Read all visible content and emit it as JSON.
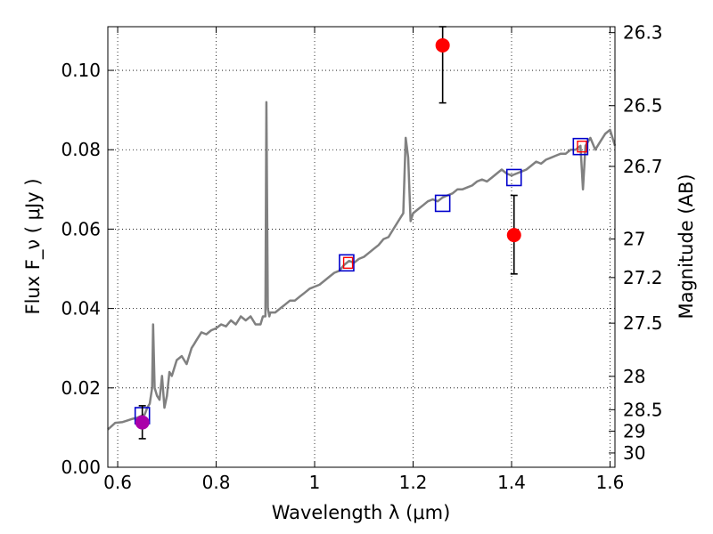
{
  "chart_data": {
    "type": "scatter",
    "title": "",
    "xlabel": "Wavelength  λ (μm)",
    "ylabel": "Flux  F_ν  ( μJy )",
    "ylabel_right": "Magnitude (AB)",
    "xlim": [
      0.58,
      1.61
    ],
    "ylim": [
      0.0,
      0.111
    ],
    "grid": true,
    "x_ticks": [
      {
        "value": 0.6,
        "label": "0.6"
      },
      {
        "value": 0.8,
        "label": "0.8"
      },
      {
        "value": 1.0,
        "label": "1"
      },
      {
        "value": 1.2,
        "label": "1.2"
      },
      {
        "value": 1.4,
        "label": "1.4"
      },
      {
        "value": 1.6,
        "label": "1.6"
      }
    ],
    "y_ticks": [
      {
        "value": 0.0,
        "label": "0.00"
      },
      {
        "value": 0.02,
        "label": "0.02"
      },
      {
        "value": 0.04,
        "label": "0.04"
      },
      {
        "value": 0.06,
        "label": "0.06"
      },
      {
        "value": 0.08,
        "label": "0.08"
      },
      {
        "value": 0.1,
        "label": "0.10"
      }
    ],
    "right_ticks": [
      {
        "label": "26.3",
        "flux": 0.1095
      },
      {
        "label": "26.5",
        "flux": 0.0911
      },
      {
        "label": "26.7",
        "flux": 0.0758
      },
      {
        "label": "27",
        "flux": 0.0575
      },
      {
        "label": "27.2",
        "flux": 0.0478
      },
      {
        "label": "27.5",
        "flux": 0.0363
      },
      {
        "label": "28",
        "flux": 0.0229
      },
      {
        "label": "28.5",
        "flux": 0.0145
      },
      {
        "label": "29",
        "flux": 0.0091
      },
      {
        "label": "30",
        "flux": 0.0036
      }
    ],
    "colors": {
      "spectrum": "#808080",
      "model_box": "#0000cc",
      "observed_box": "#ff0000",
      "detection": "#ff0000",
      "hst_point": "#aa00aa",
      "error_bar": "#000000",
      "grid": "#000000"
    },
    "series": [
      {
        "kind": "line",
        "x": [
          0.58,
          0.595,
          0.61,
          0.62,
          0.63,
          0.64,
          0.655,
          0.66,
          0.665,
          0.67,
          0.672,
          0.675,
          0.68,
          0.685,
          0.69,
          0.695,
          0.7,
          0.705,
          0.71,
          0.72,
          0.73,
          0.74,
          0.75,
          0.755,
          0.76,
          0.77,
          0.78,
          0.79,
          0.8,
          0.81,
          0.82,
          0.83,
          0.84,
          0.85,
          0.86,
          0.87,
          0.88,
          0.89,
          0.895,
          0.9,
          0.902,
          0.905,
          0.908,
          0.91,
          0.92,
          0.93,
          0.94,
          0.95,
          0.96,
          0.97,
          0.98,
          0.99,
          1.0,
          1.01,
          1.02,
          1.03,
          1.04,
          1.05,
          1.06,
          1.07,
          1.08,
          1.09,
          1.1,
          1.11,
          1.12,
          1.13,
          1.14,
          1.15,
          1.16,
          1.17,
          1.18,
          1.185,
          1.19,
          1.195,
          1.2,
          1.21,
          1.22,
          1.23,
          1.24,
          1.25,
          1.26,
          1.27,
          1.28,
          1.29,
          1.3,
          1.31,
          1.32,
          1.33,
          1.34,
          1.35,
          1.36,
          1.37,
          1.38,
          1.39,
          1.4,
          1.41,
          1.42,
          1.43,
          1.44,
          1.45,
          1.46,
          1.47,
          1.48,
          1.49,
          1.5,
          1.51,
          1.52,
          1.53,
          1.54,
          1.545,
          1.55,
          1.56,
          1.57,
          1.58,
          1.59,
          1.6,
          1.61
        ],
        "y": [
          0.0095,
          0.0112,
          0.0114,
          0.0118,
          0.0122,
          0.0125,
          0.0133,
          0.015,
          0.016,
          0.02,
          0.036,
          0.02,
          0.018,
          0.017,
          0.023,
          0.015,
          0.018,
          0.024,
          0.023,
          0.027,
          0.028,
          0.026,
          0.03,
          0.031,
          0.032,
          0.034,
          0.0335,
          0.0345,
          0.035,
          0.036,
          0.0355,
          0.037,
          0.036,
          0.038,
          0.037,
          0.038,
          0.036,
          0.036,
          0.038,
          0.038,
          0.092,
          0.04,
          0.038,
          0.039,
          0.039,
          0.04,
          0.041,
          0.042,
          0.042,
          0.043,
          0.044,
          0.045,
          0.0455,
          0.046,
          0.047,
          0.048,
          0.049,
          0.0495,
          0.051,
          0.052,
          0.0515,
          0.0525,
          0.053,
          0.054,
          0.055,
          0.056,
          0.0575,
          0.058,
          0.06,
          0.062,
          0.064,
          0.083,
          0.078,
          0.062,
          0.064,
          0.065,
          0.066,
          0.067,
          0.0675,
          0.067,
          0.068,
          0.0685,
          0.069,
          0.07,
          0.07,
          0.0705,
          0.071,
          0.072,
          0.0725,
          0.072,
          0.073,
          0.074,
          0.075,
          0.074,
          0.0735,
          0.074,
          0.0745,
          0.075,
          0.076,
          0.077,
          0.0765,
          0.0775,
          0.078,
          0.0785,
          0.079,
          0.079,
          0.08,
          0.08,
          0.081,
          0.07,
          0.081,
          0.083,
          0.08,
          0.082,
          0.084,
          0.085,
          0.081
        ]
      },
      {
        "kind": "model_boxes",
        "x": [
          0.65,
          1.065,
          1.26,
          1.405,
          1.54
        ],
        "y": [
          0.013,
          0.0515,
          0.0665,
          0.073,
          0.0808
        ]
      },
      {
        "kind": "observed_boxes",
        "x": [
          1.068,
          1.543
        ],
        "y": [
          0.0515,
          0.0808
        ]
      },
      {
        "kind": "detections",
        "x": [
          1.26,
          1.405
        ],
        "y": [
          0.1063,
          0.0585
        ],
        "yerr_low": [
          0.0918,
          0.0487
        ],
        "yerr_high": [
          0.111,
          0.0685
        ]
      },
      {
        "kind": "hst_point",
        "x": [
          0.65
        ],
        "y": [
          0.0113
        ],
        "yerr_low": [
          0.0072
        ],
        "yerr_high": [
          0.0155
        ]
      }
    ]
  }
}
